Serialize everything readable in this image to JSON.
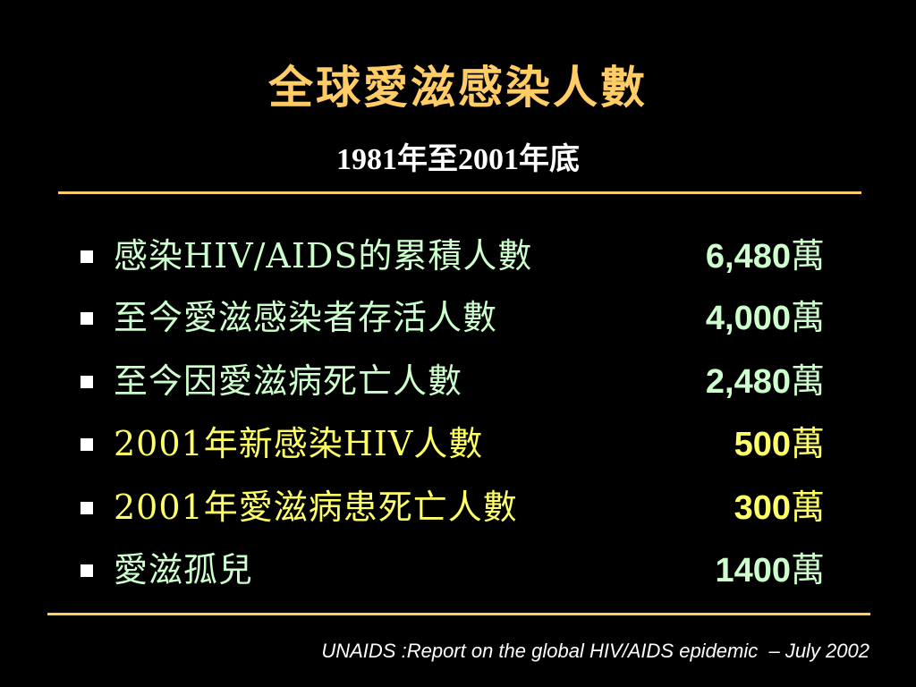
{
  "colors": {
    "background": "#000000",
    "title": "#FFCC66",
    "subtitle": "#FFFFFF",
    "rule": "#FFCC66",
    "bullet": "#FFFFFF",
    "row_green": "#CCFFCC",
    "row_yellow": "#FFFF66",
    "source": "#FFFFFF"
  },
  "slide": {
    "title": "全球愛滋感染人數",
    "subtitle": "1981年至2001年底",
    "rows": [
      {
        "label": "感染HIV/AIDS的累積人數",
        "value": "6,480",
        "unit": "萬",
        "color": "green"
      },
      {
        "label": "至今愛滋感染者存活人數",
        "value": "4,000",
        "unit": "萬",
        "color": "green"
      },
      {
        "label": "至今因愛滋病死亡人數",
        "value": "2,480",
        "unit": "萬",
        "color": "green"
      },
      {
        "label": "2001年新感染HIV人數",
        "value": "500",
        "unit": "萬",
        "color": "yellow"
      },
      {
        "label": "2001年愛滋病患死亡人數",
        "value": "300",
        "unit": "萬",
        "color": "yellow"
      },
      {
        "label": "愛滋孤兒",
        "value": "1400",
        "unit": "萬",
        "color": "green"
      }
    ],
    "source": "UNAIDS :Report on the global HIV/AIDS epidemic  – July 2002"
  }
}
